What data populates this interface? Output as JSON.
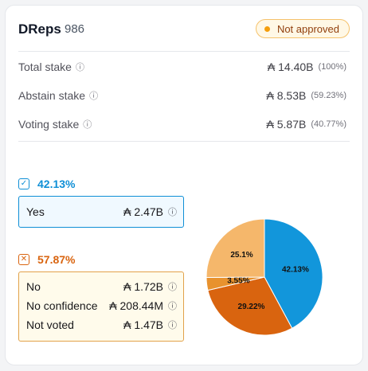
{
  "header": {
    "title": "DReps",
    "count": "986",
    "status": "Not approved"
  },
  "stakes": [
    {
      "label": "Total stake",
      "value": "₳ 14.40B",
      "pct": "(100%)"
    },
    {
      "label": "Abstain stake",
      "value": "₳ 8.53B",
      "pct": "(59.23%)"
    },
    {
      "label": "Voting stake",
      "value": "₳ 5.87B",
      "pct": "(40.77%)"
    }
  ],
  "yes": {
    "pct": "42.13%",
    "label": "Yes",
    "value": "₳ 2.47B"
  },
  "no": {
    "pct": "57.87%",
    "rows": [
      {
        "label": "No",
        "value": "₳ 1.72B"
      },
      {
        "label": "No confidence",
        "value": "₳ 208.44M"
      },
      {
        "label": "Not voted",
        "value": "₳ 1.47B"
      }
    ]
  },
  "icons": {
    "info": "info-icon",
    "yes": "checkbox-check-icon",
    "no": "checkbox-x-icon"
  },
  "colors": {
    "yes": "#0f8fd6",
    "no": "#d9640f",
    "no_confidence": "#e89430",
    "not_voted": "#f5b76b"
  },
  "chart_data": {
    "type": "pie",
    "slices": [
      {
        "label": "42.13%",
        "value": 42.13,
        "color": "#1296db"
      },
      {
        "label": "29.22%",
        "value": 29.22,
        "color": "#d9640f"
      },
      {
        "label": "3.55%",
        "value": 3.55,
        "color": "#e8922e"
      },
      {
        "label": "25.1%",
        "value": 25.1,
        "color": "#f5b76b"
      }
    ]
  }
}
